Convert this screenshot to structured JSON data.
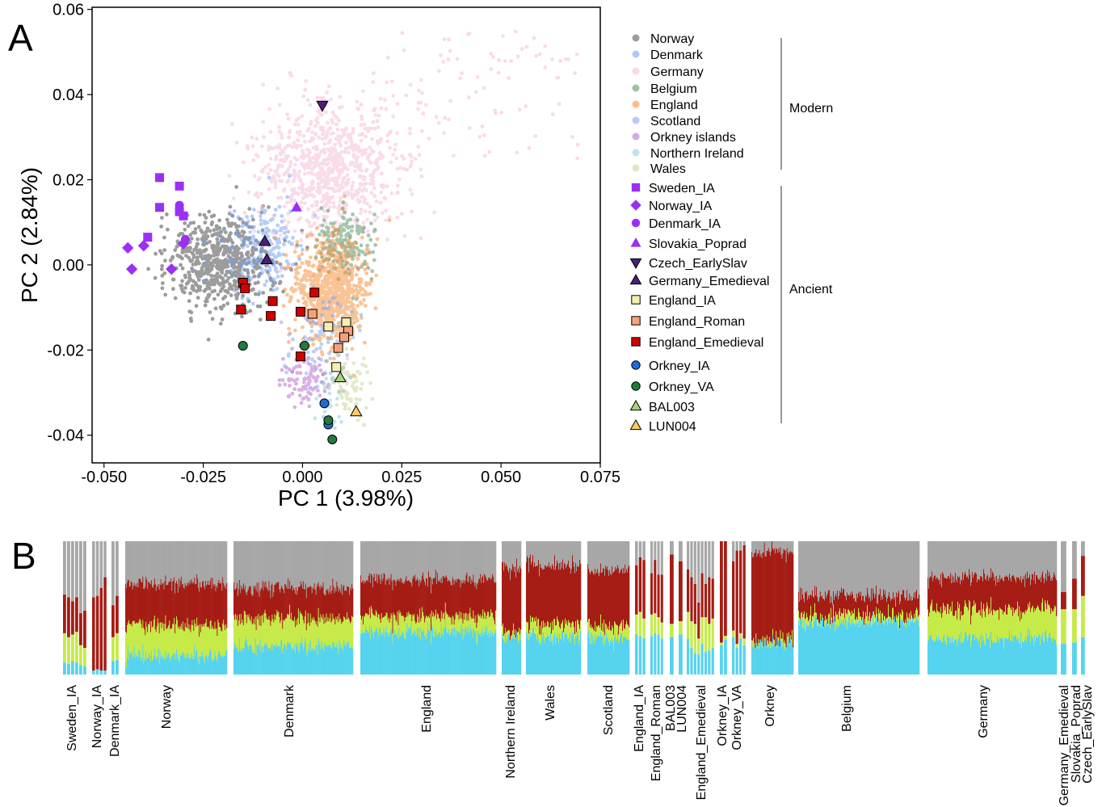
{
  "panel_labels": {
    "a": "A",
    "b": "B"
  },
  "chart_data": [
    {
      "type": "scatter",
      "panel": "A",
      "xlabel": "PC 1 (3.98%)",
      "ylabel": "PC 2 (2.84%)",
      "xlim": [
        -0.053,
        0.075
      ],
      "ylim": [
        -0.0465,
        0.0605
      ],
      "xticks": [
        "-0.050",
        "-0.025",
        "0.000",
        "0.025",
        "0.050",
        "0.075"
      ],
      "xtick_values": [
        -0.05,
        -0.025,
        0,
        0.025,
        0.05,
        0.075
      ],
      "yticks": [
        "0.06",
        "0.04",
        "0.02",
        "0.00",
        "-0.02",
        "-0.04"
      ],
      "ytick_values": [
        0.06,
        0.04,
        0.02,
        0,
        -0.02,
        -0.04
      ],
      "grid": false,
      "legend_position": "right",
      "legend_groups": [
        {
          "label": "Modern",
          "entries": [
            "Norway",
            "Denmark",
            "Germany",
            "Belgium",
            "England",
            "Scotland",
            "Orkney islands",
            "Northern Ireland",
            "Wales"
          ]
        },
        {
          "label": "Ancient",
          "entries": [
            "Sweden_IA",
            "Norway_IA",
            "Denmark_IA",
            "Slovakia_Poprad",
            "Czech_EarlySlav",
            "Germany_Emedieval",
            "England_IA",
            "England_Roman",
            "England_Emedieval",
            "Orkney_IA",
            "Orkney_VA",
            "BAL003",
            "LUN004"
          ]
        }
      ],
      "modern_series": [
        {
          "name": "Norway",
          "color": "#4d4d4d",
          "cx": -0.021,
          "cy": 0.001,
          "sx": 0.0065,
          "sy": 0.0055,
          "n": 650
        },
        {
          "name": "Denmark",
          "color": "#6b9cf2",
          "cx": -0.01,
          "cy": 0.004,
          "sx": 0.005,
          "sy": 0.005,
          "n": 200
        },
        {
          "name": "Germany",
          "color": "#f4b8d4",
          "cx": 0.007,
          "cy": 0.022,
          "sx": 0.009,
          "sy": 0.008,
          "n": 900
        },
        {
          "name": "Belgium",
          "color": "#4e8f5e",
          "cx": 0.011,
          "cy": 0.005,
          "sx": 0.0035,
          "sy": 0.004,
          "n": 170
        },
        {
          "name": "England",
          "color": "#f5892f",
          "cx": 0.007,
          "cy": -0.006,
          "sx": 0.0045,
          "sy": 0.006,
          "n": 750
        },
        {
          "name": "Scotland",
          "color": "#7e9ef0",
          "cx": 0.005,
          "cy": -0.018,
          "sx": 0.004,
          "sy": 0.006,
          "n": 90
        },
        {
          "name": "Orkney islands",
          "color": "#b366c9",
          "cx": 0.0,
          "cy": -0.027,
          "sx": 0.003,
          "sy": 0.003,
          "n": 90
        },
        {
          "name": "Northern Ireland",
          "color": "#86cde0",
          "cx": 0.007,
          "cy": -0.03,
          "sx": 0.002,
          "sy": 0.004,
          "n": 25
        },
        {
          "name": "Wales",
          "color": "#c6d493",
          "cx": 0.012,
          "cy": -0.027,
          "sx": 0.0025,
          "sy": 0.004,
          "n": 80
        }
      ],
      "ancient_series": [
        {
          "name": "Sweden_IA",
          "marker": "square",
          "color": "#9b30f5",
          "points": [
            [
              -0.036,
              0.0205
            ],
            [
              -0.031,
              0.0185
            ],
            [
              -0.036,
              0.0135
            ],
            [
              -0.031,
              0.0125
            ],
            [
              -0.03,
              0.0115
            ],
            [
              -0.039,
              0.0065
            ]
          ]
        },
        {
          "name": "Norway_IA",
          "marker": "diamond",
          "color": "#9b30f5",
          "points": [
            [
              -0.044,
              0.004
            ],
            [
              -0.04,
              0.0045
            ],
            [
              -0.033,
              -0.001
            ],
            [
              -0.043,
              -0.001
            ],
            [
              -0.03,
              0.005
            ]
          ]
        },
        {
          "name": "Denmark_IA",
          "marker": "circle",
          "color": "#9b30f5",
          "points": [
            [
              -0.031,
              0.014
            ],
            [
              -0.0295,
              0.006
            ]
          ]
        },
        {
          "name": "Slovakia_Poprad",
          "marker": "triangle-up",
          "color": "#9b30f5",
          "points": [
            [
              -0.0015,
              0.0135
            ]
          ]
        },
        {
          "name": "Czech_EarlySlav",
          "marker": "triangle-down",
          "color": "#4b1f7a",
          "points": [
            [
              0.005,
              0.0375
            ]
          ]
        },
        {
          "name": "Germany_Emedieval",
          "marker": "triangle-up",
          "color": "#4b1f7a",
          "points": [
            [
              -0.0095,
              0.0055
            ],
            [
              -0.009,
              0.0012
            ]
          ]
        },
        {
          "name": "England_IA",
          "marker": "square",
          "color": "#f5efb3",
          "points": [
            [
              0.0065,
              -0.0145
            ],
            [
              0.011,
              -0.0135
            ],
            [
              0.0085,
              -0.024
            ]
          ]
        },
        {
          "name": "England_Roman",
          "marker": "square",
          "color": "#f5a07a",
          "points": [
            [
              0.0025,
              -0.0115
            ],
            [
              0.0115,
              -0.0155
            ],
            [
              0.0105,
              -0.017
            ],
            [
              0.009,
              -0.0195
            ]
          ]
        },
        {
          "name": "England_Emedieval",
          "marker": "square",
          "color": "#d10000",
          "points": [
            [
              -0.015,
              -0.0042
            ],
            [
              -0.0145,
              -0.0055
            ],
            [
              -0.0155,
              -0.0105
            ],
            [
              -0.0075,
              -0.0085
            ],
            [
              -0.008,
              -0.012
            ],
            [
              -0.0005,
              -0.011
            ],
            [
              0.003,
              -0.0065
            ],
            [
              -0.0005,
              -0.0215
            ]
          ]
        },
        {
          "name": "Orkney_IA",
          "marker": "circle",
          "color": "#1f6ad6",
          "points": [
            [
              0.0055,
              -0.0325
            ],
            [
              0.0065,
              -0.0375
            ]
          ]
        },
        {
          "name": "Orkney_VA",
          "marker": "circle",
          "color": "#237a3f",
          "points": [
            [
              -0.015,
              -0.019
            ],
            [
              0.0005,
              -0.019
            ],
            [
              0.0065,
              -0.0365
            ],
            [
              0.0075,
              -0.041
            ]
          ]
        },
        {
          "name": "BAL003",
          "marker": "triangle-up",
          "color": "#a6d47d",
          "points": [
            [
              0.0095,
              -0.0265
            ]
          ]
        },
        {
          "name": "LUN004",
          "marker": "triangle-up",
          "color": "#f5cf62",
          "points": [
            [
              0.0135,
              -0.0345
            ]
          ]
        }
      ]
    },
    {
      "type": "bar",
      "panel": "B",
      "stacked": true,
      "component_colors": [
        "#56d3ef",
        "#c6ea48",
        "#a51d14",
        "#a7a7a7"
      ],
      "groups": [
        {
          "label": "Sweden_IA",
          "n": 6,
          "values": [
            [
              0.09,
              0.22,
              0.29,
              0.4
            ],
            [
              0.08,
              0.2,
              0.3,
              0.42
            ],
            [
              0.1,
              0.2,
              0.25,
              0.45
            ],
            [
              0.09,
              0.23,
              0.26,
              0.42
            ],
            [
              0.07,
              0.15,
              0.24,
              0.54
            ],
            [
              0.06,
              0.14,
              0.28,
              0.52
            ]
          ]
        },
        {
          "label": "Norway_IA",
          "n": 4,
          "values": [
            [
              0.03,
              0.0,
              0.55,
              0.42
            ],
            [
              0.04,
              0.0,
              0.55,
              0.41
            ],
            [
              0.03,
              0.0,
              0.62,
              0.35
            ],
            [
              0.03,
              0.0,
              0.7,
              0.27
            ]
          ]
        },
        {
          "label": "Denmark_IA",
          "n": 2,
          "values": [
            [
              0.1,
              0.18,
              0.24,
              0.48
            ],
            [
              0.11,
              0.2,
              0.28,
              0.41
            ]
          ]
        },
        {
          "label": "Norway",
          "n": 130,
          "mean": [
            0.14,
            0.23,
            0.31,
            0.32
          ]
        },
        {
          "label": "Denmark",
          "n": 150,
          "mean": [
            0.21,
            0.21,
            0.23,
            0.35
          ]
        },
        {
          "label": "England",
          "n": 170,
          "mean": [
            0.32,
            0.12,
            0.27,
            0.29
          ]
        },
        {
          "label": "Northern Ireland",
          "n": 24,
          "mean": [
            0.28,
            0.04,
            0.47,
            0.21
          ]
        },
        {
          "label": "Wales",
          "n": 68,
          "mean": [
            0.28,
            0.1,
            0.44,
            0.18
          ]
        },
        {
          "label": "Scotland",
          "n": 52,
          "mean": [
            0.27,
            0.1,
            0.41,
            0.22
          ]
        },
        {
          "label": "England_IA",
          "n": 3,
          "values": [
            [
              0.3,
              0.15,
              0.37,
              0.18
            ],
            [
              0.29,
              0.18,
              0.41,
              0.12
            ],
            [
              0.27,
              0.15,
              0.44,
              0.14
            ]
          ]
        },
        {
          "label": "England_Roman",
          "n": 4,
          "values": [
            [
              0.29,
              0.16,
              0.31,
              0.24
            ],
            [
              0.31,
              0.15,
              0.4,
              0.14
            ],
            [
              0.3,
              0.13,
              0.32,
              0.25
            ],
            [
              0.27,
              0.12,
              0.36,
              0.25
            ]
          ]
        },
        {
          "label": "BAL003",
          "n": 1,
          "values": [
            [
              0.28,
              0.1,
              0.52,
              0.1
            ]
          ]
        },
        {
          "label": "LUN004",
          "n": 1,
          "values": [
            [
              0.3,
              0.1,
              0.45,
              0.15
            ]
          ]
        },
        {
          "label": "England_Emedieval",
          "n": 8,
          "values": [
            [
              0.27,
              0.2,
              0.32,
              0.21
            ],
            [
              0.2,
              0.2,
              0.33,
              0.27
            ],
            [
              0.16,
              0.22,
              0.3,
              0.32
            ],
            [
              0.15,
              0.12,
              0.27,
              0.46
            ],
            [
              0.23,
              0.2,
              0.33,
              0.24
            ],
            [
              0.17,
              0.26,
              0.25,
              0.32
            ],
            [
              0.18,
              0.2,
              0.35,
              0.27
            ],
            [
              0.2,
              0.22,
              0.3,
              0.28
            ]
          ]
        },
        {
          "label": "Orkney_IA",
          "n": 2,
          "values": [
            [
              0.22,
              0.02,
              0.76,
              0.0
            ],
            [
              0.26,
              0.03,
              0.71,
              0.0
            ]
          ]
        },
        {
          "label": "Orkney_VA",
          "n": 4,
          "values": [
            [
              0.28,
              0.05,
              0.52,
              0.15
            ],
            [
              0.2,
              0.03,
              0.7,
              0.07
            ],
            [
              0.27,
              0.04,
              0.62,
              0.07
            ],
            [
              0.22,
              0.05,
              0.7,
              0.03
            ]
          ]
        },
        {
          "label": "Orkney",
          "n": 50,
          "mean": [
            0.23,
            0.03,
            0.66,
            0.08
          ]
        },
        {
          "label": "Belgium",
          "n": 150,
          "mean": [
            0.39,
            0.05,
            0.15,
            0.41
          ]
        },
        {
          "label": "Germany",
          "n": 160,
          "mean": [
            0.27,
            0.22,
            0.24,
            0.27
          ]
        },
        {
          "label": "Germany_Emedieval",
          "n": 1,
          "values": [
            [
              0.23,
              0.26,
              0.13,
              0.38
            ]
          ]
        },
        {
          "label": "Slovakia_Poprad",
          "n": 1,
          "values": [
            [
              0.24,
              0.25,
              0.23,
              0.28
            ]
          ]
        },
        {
          "label": "Czech_EarlySlav",
          "n": 1,
          "values": [
            [
              0.28,
              0.31,
              0.3,
              0.11
            ]
          ]
        }
      ]
    }
  ]
}
